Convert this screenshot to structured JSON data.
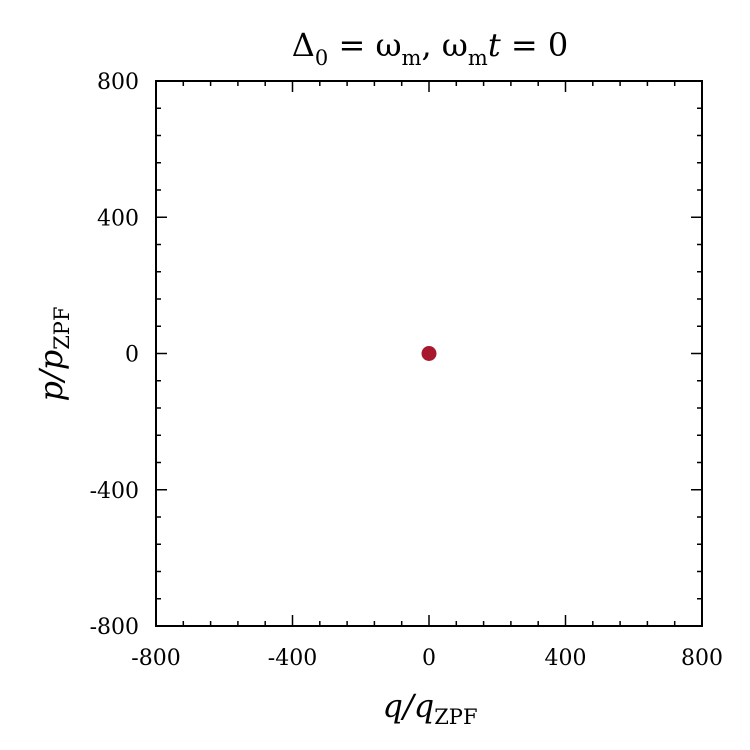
{
  "chart_data": {
    "type": "scatter",
    "title": {
      "delta": "Δ",
      "sub0": "0",
      "eq1": " = ω",
      "subm1": "m",
      "comma": ", ω",
      "subm2": "m",
      "t": "t",
      "eq2": " = 0"
    },
    "xlabel": {
      "main": "q/q",
      "sub": "ZPF"
    },
    "ylabel": {
      "main": "p/p",
      "sub": "ZPF"
    },
    "xlim": [
      -800,
      800
    ],
    "ylim": [
      -800,
      800
    ],
    "xticks": [
      -800,
      -400,
      0,
      400,
      800
    ],
    "yticks": [
      -800,
      -400,
      0,
      400,
      800
    ],
    "xtick_labels": [
      "-800",
      "-400",
      "0",
      "400",
      "800"
    ],
    "ytick_labels": [
      "-800",
      "-400",
      "0",
      "400",
      "800"
    ],
    "minor_step": 80,
    "grid": false,
    "points": [
      {
        "x": 0,
        "y": 0
      }
    ],
    "point_color": "#a8182c"
  }
}
